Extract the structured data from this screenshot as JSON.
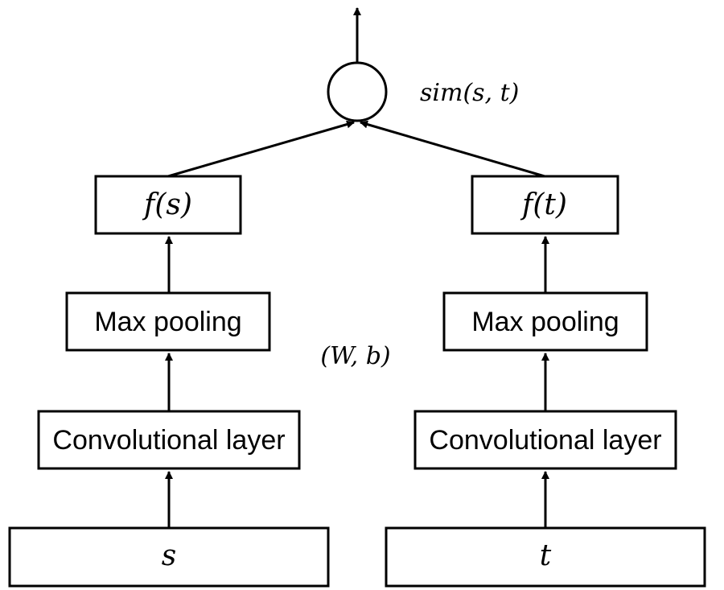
{
  "diagram": {
    "left_branch": {
      "input": "s",
      "conv": "Convolutional layer",
      "pool": "Max pooling",
      "output": "f(s)"
    },
    "right_branch": {
      "input": "t",
      "conv": "Convolutional layer",
      "pool": "Max pooling",
      "output": "f(t)"
    },
    "shared_params": "(W, b)",
    "similarity": "sim(s, t)"
  }
}
